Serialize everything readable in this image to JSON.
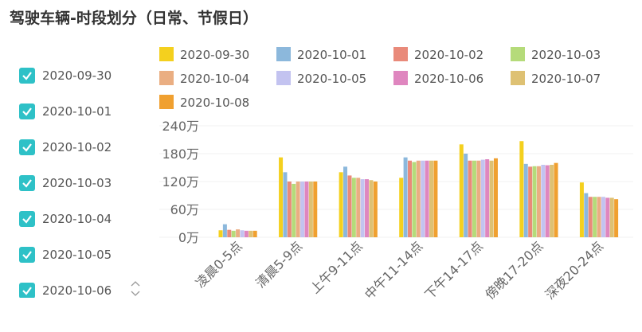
{
  "header": {
    "title": "驾驶车辆-时段划分（日常、节假日）"
  },
  "filters": {
    "items": [
      "2020-09-30",
      "2020-10-01",
      "2020-10-02",
      "2020-10-03",
      "2020-10-04",
      "2020-10-05",
      "2020-10-06"
    ]
  },
  "chart_data": {
    "type": "bar",
    "categories": [
      "凌晨0-5点",
      "清晨5-9点",
      "上午9-11点",
      "中午11-14点",
      "下午14-17点",
      "傍晚17-20点",
      "深夜20-24点"
    ],
    "series": [
      {
        "name": "2020-09-30",
        "color": "#f4d01e",
        "values": [
          15,
          172,
          140,
          128,
          200,
          207,
          118
        ]
      },
      {
        "name": "2020-10-01",
        "color": "#8cb8dc",
        "values": [
          28,
          140,
          152,
          172,
          180,
          158,
          95
        ]
      },
      {
        "name": "2020-10-02",
        "color": "#e98a7a",
        "values": [
          16,
          120,
          133,
          165,
          165,
          152,
          87
        ]
      },
      {
        "name": "2020-10-03",
        "color": "#b5db7a",
        "values": [
          14,
          115,
          128,
          162,
          165,
          153,
          87
        ]
      },
      {
        "name": "2020-10-04",
        "color": "#eaae82",
        "values": [
          17,
          120,
          128,
          165,
          165,
          153,
          87
        ]
      },
      {
        "name": "2020-10-05",
        "color": "#c3c3f0",
        "values": [
          15,
          120,
          125,
          165,
          167,
          156,
          87
        ]
      },
      {
        "name": "2020-10-06",
        "color": "#df86bf",
        "values": [
          14,
          120,
          125,
          165,
          168,
          155,
          85
        ]
      },
      {
        "name": "2020-10-07",
        "color": "#dec173",
        "values": [
          14,
          120,
          123,
          165,
          165,
          156,
          85
        ]
      },
      {
        "name": "2020-10-08",
        "color": "#f0a030",
        "values": [
          14,
          120,
          120,
          165,
          170,
          160,
          82
        ]
      }
    ],
    "ylim": [
      0,
      240
    ],
    "yticks": [
      {
        "value": 0,
        "label": "0万"
      },
      {
        "value": 60,
        "label": "60万"
      },
      {
        "value": 120,
        "label": "120万"
      },
      {
        "value": 180,
        "label": "180万"
      },
      {
        "value": 240,
        "label": "240万"
      }
    ],
    "grid": true,
    "legend": "top"
  }
}
